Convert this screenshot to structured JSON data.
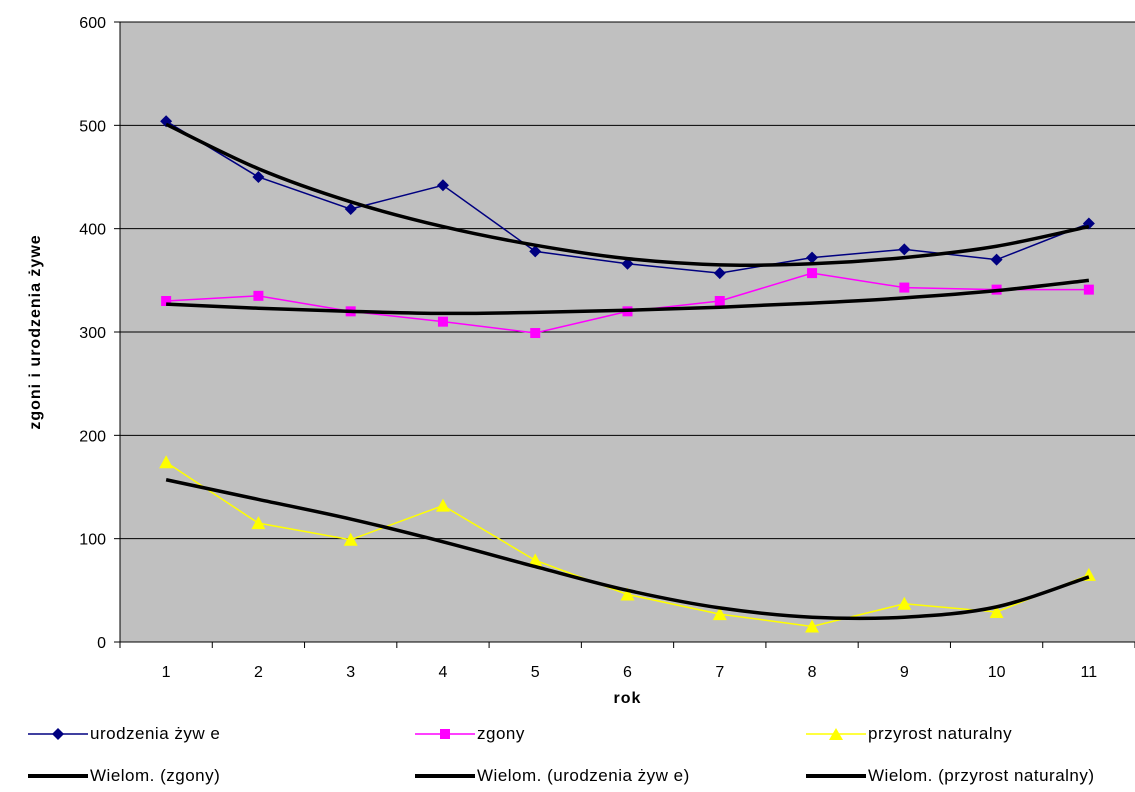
{
  "chart_data": {
    "type": "line",
    "xlabel": "rok",
    "ylabel": "zgoni i urodzenia żywe",
    "categories": [
      "1",
      "2",
      "3",
      "4",
      "5",
      "6",
      "7",
      "8",
      "9",
      "10",
      "11"
    ],
    "y_ticks": [
      "0",
      "100",
      "200",
      "300",
      "400",
      "500",
      "600"
    ],
    "ylim": [
      0,
      600
    ],
    "grid": true,
    "plot_background": "#C0C0C0",
    "legend_position": "bottom",
    "series": [
      {
        "name": "urodzenia żyw e",
        "color": "#000080",
        "marker": "diamond",
        "values": [
          504,
          450,
          419,
          442,
          378,
          366,
          357,
          372,
          380,
          370,
          405
        ]
      },
      {
        "name": "zgony",
        "color": "#FF00FF",
        "marker": "square",
        "values": [
          330,
          335,
          320,
          310,
          299,
          320,
          330,
          357,
          343,
          341,
          341
        ]
      },
      {
        "name": "przyrost naturalny",
        "color": "#FFFF00",
        "marker": "triangle",
        "values": [
          174,
          115,
          99,
          132,
          79,
          46,
          27,
          15,
          37,
          29,
          65
        ]
      }
    ],
    "trendlines": [
      {
        "name": "Wielom. (zgony)",
        "color": "#000000",
        "values": [
          327,
          323,
          320,
          318,
          319,
          321,
          324,
          328,
          333,
          340,
          350
        ]
      },
      {
        "name": "Wielom. (urodzenia żyw e)",
        "color": "#000000",
        "values": [
          501,
          458,
          426,
          402,
          384,
          371,
          365,
          366,
          372,
          383,
          402
        ]
      },
      {
        "name": "Wielom. (przyrost naturalny)",
        "color": "#000000",
        "values": [
          157,
          138,
          119,
          97,
          73,
          50,
          33,
          24,
          24,
          34,
          63
        ]
      }
    ]
  }
}
